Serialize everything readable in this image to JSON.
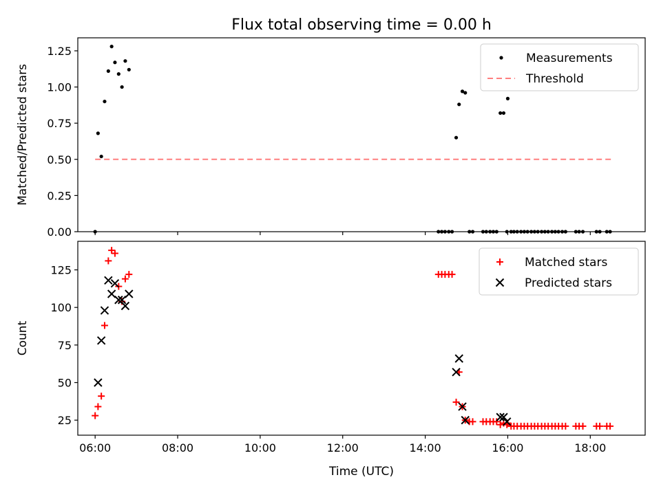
{
  "title": "Flux total observing time = 0.00 h",
  "chart_data": [
    {
      "type": "scatter",
      "title": "Flux total observing time = 0.00 h",
      "xlabel": "",
      "ylabel": "Matched/Predicted stars",
      "xlim": [
        5.58,
        19.33
      ],
      "ylim": [
        0.0,
        1.34
      ],
      "grid": false,
      "legend_position": "top-right",
      "yticks": [
        0.0,
        0.25,
        0.5,
        0.75,
        1.0,
        1.25
      ],
      "ytick_labels": [
        "0.00",
        "0.25",
        "0.50",
        "0.75",
        "1.00",
        "1.25"
      ],
      "xticks": [
        6,
        8,
        10,
        12,
        14,
        16,
        18
      ],
      "series": [
        {
          "name": "Measurements",
          "marker": "dot",
          "color": "#000000",
          "points": [
            [
              6.0,
              0.0
            ],
            [
              6.07,
              0.68
            ],
            [
              6.15,
              0.52
            ],
            [
              6.23,
              0.9
            ],
            [
              6.32,
              1.11
            ],
            [
              6.4,
              1.28
            ],
            [
              6.48,
              1.17
            ],
            [
              6.57,
              1.09
            ],
            [
              6.65,
              1.0
            ],
            [
              6.73,
              1.18
            ],
            [
              6.82,
              1.12
            ],
            [
              14.32,
              0.0
            ],
            [
              14.4,
              0.0
            ],
            [
              14.48,
              0.0
            ],
            [
              14.57,
              0.0
            ],
            [
              14.65,
              0.0
            ],
            [
              14.75,
              0.65
            ],
            [
              14.82,
              0.88
            ],
            [
              14.9,
              0.97
            ],
            [
              14.97,
              0.96
            ],
            [
              15.07,
              0.0
            ],
            [
              15.15,
              0.0
            ],
            [
              15.4,
              0.0
            ],
            [
              15.48,
              0.0
            ],
            [
              15.57,
              0.0
            ],
            [
              15.65,
              0.0
            ],
            [
              15.73,
              0.0
            ],
            [
              15.82,
              0.82
            ],
            [
              15.9,
              0.82
            ],
            [
              15.98,
              0.0
            ],
            [
              16.0,
              0.92
            ],
            [
              16.08,
              0.0
            ],
            [
              16.15,
              0.0
            ],
            [
              16.23,
              0.0
            ],
            [
              16.32,
              0.0
            ],
            [
              16.4,
              0.0
            ],
            [
              16.48,
              0.0
            ],
            [
              16.57,
              0.0
            ],
            [
              16.65,
              0.0
            ],
            [
              16.73,
              0.0
            ],
            [
              16.82,
              0.0
            ],
            [
              16.9,
              0.0
            ],
            [
              16.98,
              0.0
            ],
            [
              17.07,
              0.0
            ],
            [
              17.15,
              0.0
            ],
            [
              17.23,
              0.0
            ],
            [
              17.32,
              0.0
            ],
            [
              17.4,
              0.0
            ],
            [
              17.65,
              0.0
            ],
            [
              17.73,
              0.0
            ],
            [
              17.82,
              0.0
            ],
            [
              18.15,
              0.0
            ],
            [
              18.23,
              0.0
            ],
            [
              18.4,
              0.0
            ],
            [
              18.48,
              0.0
            ]
          ]
        },
        {
          "name": "Threshold",
          "marker": "dashed-line",
          "color": "#ff7f7f",
          "points": [
            [
              6.0,
              0.5
            ],
            [
              18.5,
              0.5
            ]
          ]
        }
      ]
    },
    {
      "type": "scatter",
      "title": "",
      "xlabel": "Time (UTC)",
      "ylabel": "Count",
      "xlim": [
        5.58,
        19.33
      ],
      "ylim": [
        15,
        144
      ],
      "grid": false,
      "legend_position": "top-right",
      "yticks": [
        25,
        50,
        75,
        100,
        125
      ],
      "ytick_labels": [
        "25",
        "50",
        "75",
        "100",
        "125"
      ],
      "xticks": [
        6,
        8,
        10,
        12,
        14,
        16,
        18
      ],
      "xtick_labels": [
        "06:00",
        "08:00",
        "10:00",
        "12:00",
        "14:00",
        "16:00",
        "18:00"
      ],
      "series": [
        {
          "name": "Matched stars",
          "marker": "plus",
          "color": "#ff0000",
          "points": [
            [
              6.0,
              28
            ],
            [
              6.07,
              34
            ],
            [
              6.15,
              41
            ],
            [
              6.23,
              88
            ],
            [
              6.32,
              131
            ],
            [
              6.4,
              138
            ],
            [
              6.48,
              136
            ],
            [
              6.57,
              114
            ],
            [
              6.65,
              104
            ],
            [
              6.73,
              119
            ],
            [
              6.82,
              122
            ],
            [
              14.32,
              122
            ],
            [
              14.4,
              122
            ],
            [
              14.48,
              122
            ],
            [
              14.57,
              122
            ],
            [
              14.65,
              122
            ],
            [
              14.75,
              37
            ],
            [
              14.82,
              57
            ],
            [
              14.9,
              34
            ],
            [
              14.97,
              25
            ],
            [
              15.07,
              24
            ],
            [
              15.15,
              24
            ],
            [
              15.4,
              24
            ],
            [
              15.48,
              24
            ],
            [
              15.57,
              24
            ],
            [
              15.65,
              24
            ],
            [
              15.73,
              24
            ],
            [
              15.82,
              22
            ],
            [
              15.9,
              23
            ],
            [
              15.98,
              22
            ],
            [
              16.0,
              23
            ],
            [
              16.08,
              21
            ],
            [
              16.15,
              21
            ],
            [
              16.23,
              21
            ],
            [
              16.32,
              21
            ],
            [
              16.4,
              21
            ],
            [
              16.48,
              21
            ],
            [
              16.57,
              21
            ],
            [
              16.65,
              21
            ],
            [
              16.73,
              21
            ],
            [
              16.82,
              21
            ],
            [
              16.9,
              21
            ],
            [
              16.98,
              21
            ],
            [
              17.07,
              21
            ],
            [
              17.15,
              21
            ],
            [
              17.23,
              21
            ],
            [
              17.32,
              21
            ],
            [
              17.4,
              21
            ],
            [
              17.65,
              21
            ],
            [
              17.73,
              21
            ],
            [
              17.82,
              21
            ],
            [
              18.15,
              21
            ],
            [
              18.23,
              21
            ],
            [
              18.4,
              21
            ],
            [
              18.48,
              21
            ]
          ]
        },
        {
          "name": "Predicted stars",
          "marker": "x",
          "color": "#000000",
          "points": [
            [
              6.07,
              50
            ],
            [
              6.15,
              78
            ],
            [
              6.23,
              98
            ],
            [
              6.32,
              118
            ],
            [
              6.4,
              109
            ],
            [
              6.48,
              116
            ],
            [
              6.57,
              105
            ],
            [
              6.65,
              105
            ],
            [
              6.73,
              101
            ],
            [
              6.82,
              109
            ],
            [
              14.75,
              57
            ],
            [
              14.82,
              66
            ],
            [
              14.9,
              34
            ],
            [
              14.97,
              25
            ],
            [
              15.82,
              27
            ],
            [
              15.9,
              27
            ],
            [
              15.98,
              24
            ]
          ]
        }
      ]
    }
  ]
}
